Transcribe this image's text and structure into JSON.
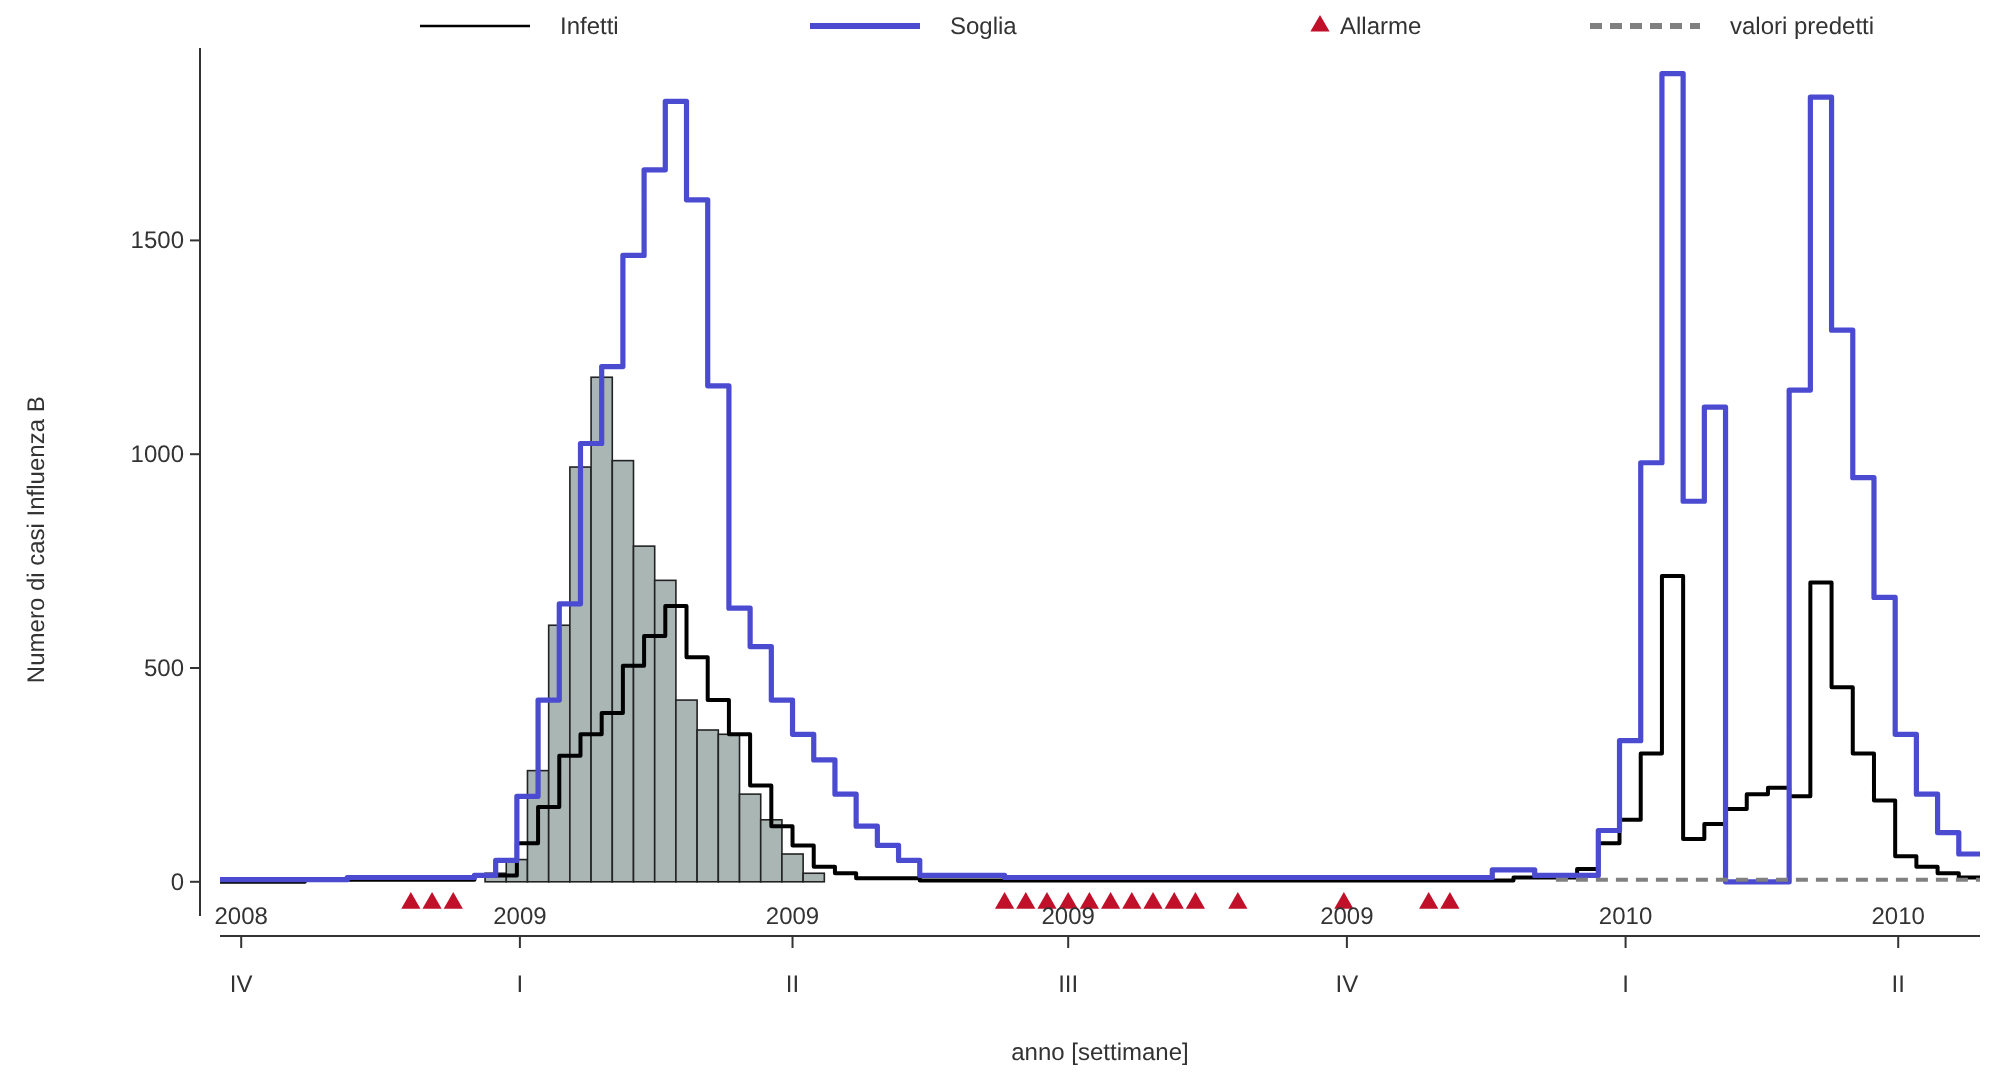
{
  "chart_data": {
    "type": "step",
    "xlabel": "anno [settimane]",
    "ylabel": "Numero di casi Influenza B",
    "xlim": [
      "2008-09-24",
      "2010-04-28"
    ],
    "ylim": [
      -80,
      1950
    ],
    "xticks": [
      {
        "value": "2008-10-01",
        "label": "2008"
      },
      {
        "value": "2009-01-01",
        "label": "2009"
      },
      {
        "value": "2009-04-01",
        "label": "2009"
      },
      {
        "value": "2009-07-01",
        "label": "2009"
      },
      {
        "value": "2009-10-01",
        "label": "2009"
      },
      {
        "value": "2010-01-01",
        "label": "2010"
      },
      {
        "value": "2010-04-01",
        "label": "2010"
      }
    ],
    "annotations": [
      "IV",
      "I",
      "II",
      "III",
      "IV",
      "I",
      "II"
    ],
    "yticks": [
      0,
      500,
      1000,
      1500
    ],
    "grid": false,
    "legend": "top",
    "series": [
      {
        "type": "bar",
        "color": "#a9b6b4",
        "x": [
          "2008-12-24",
          "2008-12-31",
          "2009-01-07",
          "2009-01-14",
          "2009-01-21",
          "2009-01-28",
          "2009-02-04",
          "2009-02-11",
          "2009-02-18",
          "2009-02-25",
          "2009-03-04",
          "2009-03-11",
          "2009-03-18",
          "2009-03-25",
          "2009-04-01",
          "2009-04-08"
        ],
        "values": [
          20,
          52,
          260,
          600,
          970,
          1180,
          985,
          785,
          705,
          425,
          355,
          345,
          205,
          145,
          65,
          20
        ]
      },
      {
        "name": "Infetti",
        "color": "#000000",
        "x": [
          "2008-09-24",
          "2008-10-22",
          "2008-12-17",
          "2008-12-31",
          "2009-01-07",
          "2009-01-14",
          "2009-01-21",
          "2009-01-28",
          "2009-02-04",
          "2009-02-11",
          "2009-02-18",
          "2009-02-25",
          "2009-03-04",
          "2009-03-11",
          "2009-03-18",
          "2009-03-25",
          "2009-04-01",
          "2009-04-08",
          "2009-04-15",
          "2009-04-22",
          "2009-05-13",
          "2009-11-25",
          "2009-12-16",
          "2009-12-23",
          "2009-12-30",
          "2010-01-06",
          "2010-01-13",
          "2010-01-20",
          "2010-01-27",
          "2010-02-03",
          "2010-02-10",
          "2010-02-17",
          "2010-02-24",
          "2010-03-03",
          "2010-03-10",
          "2010-03-17",
          "2010-03-24",
          "2010-03-31",
          "2010-04-07",
          "2010-04-14",
          "2010-04-21",
          "2010-04-28"
        ],
        "values": [
          0,
          5,
          15,
          90,
          175,
          295,
          345,
          395,
          505,
          575,
          645,
          525,
          425,
          345,
          225,
          130,
          85,
          35,
          20,
          8,
          3,
          10,
          30,
          90,
          145,
          300,
          715,
          100,
          135,
          170,
          205,
          220,
          200,
          700,
          455,
          300,
          190,
          60,
          35,
          20,
          10,
          10
        ]
      },
      {
        "name": "Soglia",
        "color": "#4b4bd2",
        "x": [
          "2008-09-24",
          "2008-11-05",
          "2008-12-17",
          "2008-12-24",
          "2008-12-31",
          "2009-01-07",
          "2009-01-14",
          "2009-01-21",
          "2009-01-28",
          "2009-02-04",
          "2009-02-11",
          "2009-02-18",
          "2009-02-25",
          "2009-03-04",
          "2009-03-11",
          "2009-03-18",
          "2009-03-25",
          "2009-04-01",
          "2009-04-08",
          "2009-04-15",
          "2009-04-22",
          "2009-04-29",
          "2009-05-06",
          "2009-05-13",
          "2009-06-10",
          "2009-11-18",
          "2009-12-02",
          "2009-12-23",
          "2009-12-30",
          "2010-01-06",
          "2010-01-13",
          "2010-01-20",
          "2010-01-27",
          "2010-02-03",
          "2010-02-24",
          "2010-03-03",
          "2010-03-10",
          "2010-03-17",
          "2010-03-24",
          "2010-03-31",
          "2010-04-07",
          "2010-04-14",
          "2010-04-21",
          "2010-04-28"
        ],
        "values": [
          5,
          10,
          15,
          50,
          200,
          425,
          650,
          1025,
          1205,
          1465,
          1665,
          1825,
          1595,
          1160,
          640,
          550,
          425,
          345,
          285,
          205,
          130,
          85,
          50,
          15,
          10,
          28,
          15,
          120,
          330,
          980,
          1890,
          890,
          1110,
          0,
          1150,
          1835,
          1290,
          945,
          665,
          345,
          205,
          115,
          65,
          65
        ]
      },
      {
        "name": "Allarme",
        "type": "scatter",
        "marker": "triangle",
        "color": "#c0102a",
        "x": [
          "2008-11-26",
          "2008-12-03",
          "2008-12-10",
          "2009-06-10",
          "2009-06-17",
          "2009-06-24",
          "2009-07-01",
          "2009-07-08",
          "2009-07-15",
          "2009-07-22",
          "2009-07-29",
          "2009-08-05",
          "2009-08-12",
          "2009-08-26",
          "2009-09-30",
          "2009-10-28",
          "2009-11-04"
        ],
        "values": [
          -50,
          -50,
          -50,
          -50,
          -50,
          -50,
          -50,
          -50,
          -50,
          -50,
          -50,
          -50,
          -50,
          -50,
          -50,
          -50,
          -50
        ]
      },
      {
        "name": "valori predetti",
        "type": "line",
        "line_style": "dashed",
        "color": "#808080",
        "x": [
          "2009-12-09",
          "2010-04-28"
        ],
        "values": [
          5,
          5
        ]
      }
    ]
  }
}
